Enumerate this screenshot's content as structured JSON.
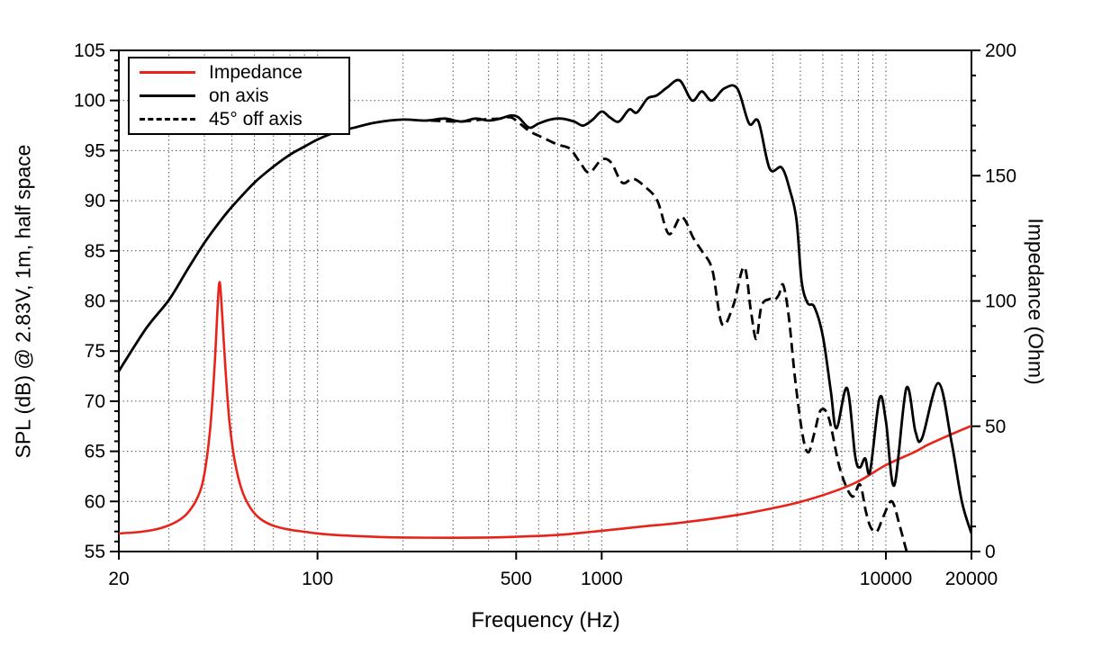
{
  "figure": {
    "background": "#ffffff",
    "frame_color": "#000000",
    "grid_color": "#555555"
  },
  "chart_data": {
    "type": "line",
    "title": "",
    "xlabel": "Frequency (Hz)",
    "ylabel_left": "SPL (dB) @ 2.83V, 1m, half space",
    "ylabel_right": "Impedance (Ohm)",
    "x_scale": "log",
    "xlim": [
      20,
      20000
    ],
    "ylim_left": [
      55,
      105
    ],
    "ylim_right": [
      0,
      200
    ],
    "x_ticks_labeled": [
      "20",
      "100",
      "500",
      "1000",
      "10000",
      "20000"
    ],
    "x_tick_values": [
      20,
      100,
      500,
      1000,
      10000,
      20000
    ],
    "y_ticks_left": [
      55,
      60,
      65,
      70,
      75,
      80,
      85,
      90,
      95,
      100,
      105
    ],
    "y_minor_step_left": 1,
    "y_ticks_right": [
      0,
      50,
      100,
      150,
      200
    ],
    "y_minor_step_right": 10,
    "grid": "dotted",
    "grid_y_left_values": [
      60,
      65,
      70,
      75,
      80,
      85,
      90,
      95,
      100
    ],
    "legend_position": "top-left",
    "series": [
      {
        "name": "Impedance",
        "axis": "right",
        "units": "Ohm",
        "color": "#e8231a",
        "style": "solid",
        "points": [
          [
            20,
            7.2
          ],
          [
            24,
            7.9
          ],
          [
            28,
            9.3
          ],
          [
            32,
            12.0
          ],
          [
            35,
            15.5
          ],
          [
            38,
            22.0
          ],
          [
            40,
            31.0
          ],
          [
            42,
            50.0
          ],
          [
            43.5,
            75.0
          ],
          [
            44.5,
            97.0
          ],
          [
            45.2,
            107.5
          ],
          [
            46,
            98.0
          ],
          [
            47.5,
            72.0
          ],
          [
            49,
            52.0
          ],
          [
            51,
            37.0
          ],
          [
            54,
            25.0
          ],
          [
            58,
            17.5
          ],
          [
            63,
            13.0
          ],
          [
            70,
            10.3
          ],
          [
            80,
            8.7
          ],
          [
            90,
            7.9
          ],
          [
            100,
            7.2
          ],
          [
            120,
            6.5
          ],
          [
            150,
            6.0
          ],
          [
            200,
            5.6
          ],
          [
            300,
            5.5
          ],
          [
            400,
            5.6
          ],
          [
            500,
            5.9
          ],
          [
            700,
            6.6
          ],
          [
            1000,
            8.3
          ],
          [
            1400,
            10.0
          ],
          [
            2000,
            11.8
          ],
          [
            3000,
            14.6
          ],
          [
            4000,
            17.3
          ],
          [
            5000,
            19.8
          ],
          [
            6500,
            23.8
          ],
          [
            8000,
            28.0
          ],
          [
            10000,
            34.5
          ],
          [
            12500,
            39.5
          ],
          [
            14000,
            42.5
          ],
          [
            16000,
            45.5
          ],
          [
            18000,
            48.0
          ],
          [
            20000,
            50.2
          ]
        ]
      },
      {
        "name": "on axis",
        "axis": "left",
        "units": "dB",
        "color": "#000000",
        "style": "solid",
        "points": [
          [
            20,
            73.0
          ],
          [
            25,
            77.3
          ],
          [
            30,
            80.1
          ],
          [
            35,
            83.2
          ],
          [
            40,
            85.8
          ],
          [
            45,
            87.8
          ],
          [
            50,
            89.4
          ],
          [
            60,
            91.8
          ],
          [
            70,
            93.4
          ],
          [
            80,
            94.6
          ],
          [
            90,
            95.4
          ],
          [
            100,
            96.1
          ],
          [
            115,
            96.8
          ],
          [
            135,
            97.3
          ],
          [
            160,
            97.8
          ],
          [
            200,
            98.1
          ],
          [
            240,
            98.0
          ],
          [
            280,
            98.2
          ],
          [
            320,
            97.9
          ],
          [
            360,
            98.2
          ],
          [
            400,
            98.0
          ],
          [
            440,
            98.2
          ],
          [
            480,
            98.5
          ],
          [
            510,
            98.3
          ],
          [
            555,
            97.3
          ],
          [
            600,
            97.7
          ],
          [
            660,
            98.1
          ],
          [
            720,
            98.2
          ],
          [
            800,
            97.9
          ],
          [
            860,
            97.5
          ],
          [
            930,
            98.1
          ],
          [
            1000,
            98.9
          ],
          [
            1070,
            98.3
          ],
          [
            1150,
            97.9
          ],
          [
            1250,
            99.1
          ],
          [
            1330,
            98.8
          ],
          [
            1450,
            100.2
          ],
          [
            1560,
            100.5
          ],
          [
            1700,
            101.3
          ],
          [
            1880,
            102.0
          ],
          [
            2080,
            100.0
          ],
          [
            2250,
            100.9
          ],
          [
            2440,
            100.0
          ],
          [
            2700,
            101.2
          ],
          [
            3000,
            101.2
          ],
          [
            3300,
            97.7
          ],
          [
            3560,
            97.9
          ],
          [
            3900,
            93.2
          ],
          [
            4300,
            93.3
          ],
          [
            4600,
            91.0
          ],
          [
            4850,
            88.0
          ],
          [
            5050,
            82.0
          ],
          [
            5300,
            79.8
          ],
          [
            5600,
            79.4
          ],
          [
            6000,
            76.5
          ],
          [
            6400,
            71.0
          ],
          [
            6700,
            67.3
          ],
          [
            7300,
            71.3
          ],
          [
            7800,
            64.5
          ],
          [
            8100,
            63.4
          ],
          [
            8450,
            64.3
          ],
          [
            8800,
            63.0
          ],
          [
            9500,
            70.3
          ],
          [
            10000,
            68.0
          ],
          [
            10700,
            61.6
          ],
          [
            11800,
            71.3
          ],
          [
            12700,
            67.0
          ],
          [
            13400,
            66.3
          ],
          [
            15300,
            71.8
          ],
          [
            17000,
            66.0
          ],
          [
            18500,
            60.0
          ],
          [
            20000,
            56.8
          ]
        ]
      },
      {
        "name": "45° off axis",
        "axis": "left",
        "units": "dB",
        "color": "#000000",
        "style": "dashed",
        "points": [
          [
            250,
            98.0
          ],
          [
            320,
            97.9
          ],
          [
            380,
            98.1
          ],
          [
            440,
            98.2
          ],
          [
            480,
            98.3
          ],
          [
            520,
            97.6
          ],
          [
            560,
            96.9
          ],
          [
            620,
            96.3
          ],
          [
            700,
            95.6
          ],
          [
            772,
            95.2
          ],
          [
            840,
            93.8
          ],
          [
            905,
            92.8
          ],
          [
            1000,
            94.1
          ],
          [
            1080,
            93.8
          ],
          [
            1180,
            91.8
          ],
          [
            1290,
            92.2
          ],
          [
            1420,
            91.4
          ],
          [
            1570,
            90.0
          ],
          [
            1720,
            86.7
          ],
          [
            1880,
            88.3
          ],
          [
            1970,
            88.0
          ],
          [
            2100,
            86.3
          ],
          [
            2260,
            84.9
          ],
          [
            2450,
            83.1
          ],
          [
            2650,
            77.7
          ],
          [
            2900,
            79.5
          ],
          [
            3170,
            83.4
          ],
          [
            3350,
            79.0
          ],
          [
            3500,
            76.2
          ],
          [
            3650,
            79.5
          ],
          [
            3900,
            80.2
          ],
          [
            4050,
            80.1
          ],
          [
            4200,
            80.6
          ],
          [
            4350,
            81.6
          ],
          [
            4550,
            78.5
          ],
          [
            4800,
            72.0
          ],
          [
            5100,
            66.5
          ],
          [
            5340,
            64.9
          ],
          [
            5600,
            66.8
          ],
          [
            5900,
            69.1
          ],
          [
            6300,
            68.3
          ],
          [
            6900,
            63.2
          ],
          [
            7600,
            60.5
          ],
          [
            8100,
            61.7
          ],
          [
            8500,
            59.0
          ],
          [
            8850,
            57.4
          ],
          [
            9300,
            57.0
          ],
          [
            9800,
            58.5
          ],
          [
            10500,
            60.0
          ],
          [
            11200,
            57.5
          ],
          [
            11900,
            54.8
          ],
          [
            12500,
            53.5
          ],
          [
            14200,
            54.0
          ],
          [
            15000,
            55.2
          ],
          [
            15800,
            53.5
          ]
        ]
      }
    ]
  }
}
